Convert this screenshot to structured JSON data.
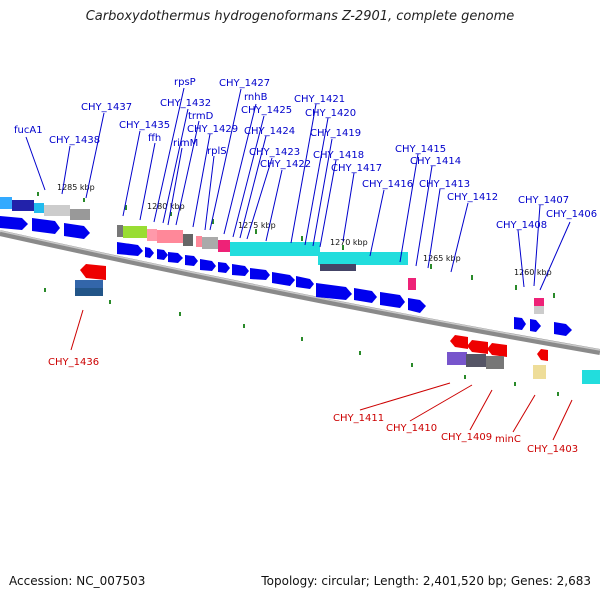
{
  "title": "Carboxydothermus hydrogenoformans Z-2901, complete genome",
  "footer": {
    "accession": "Accession: NC_007503",
    "summary": "Topology: circular; Length: 2,401,520 bp; Genes: 2,683"
  },
  "scale_labels": [
    "1285 kbp",
    "1280 kbp",
    "1275 kbp",
    "1270 kbp",
    "1265 kbp",
    "1260 kbp"
  ],
  "gene_labels_top": [
    "fucA1",
    "CHY_1438",
    "CHY_1437",
    "CHY_1435",
    "ffh",
    "rpsP",
    "CHY_1432",
    "trmD",
    "rimM",
    "CHY_1429",
    "rplS",
    "CHY_1427",
    "rnhB",
    "CHY_1425",
    "CHY_1424",
    "CHY_1423",
    "CHY_1422",
    "CHY_1421",
    "CHY_1420",
    "CHY_1419",
    "CHY_1418",
    "CHY_1417",
    "CHY_1416",
    "CHY_1415",
    "CHY_1414",
    "CHY_1413",
    "CHY_1412",
    "CHY_1407",
    "CHY_1408",
    "CHY_1406"
  ],
  "gene_labels_bottom": [
    "CHY_1436",
    "CHY_1411",
    "CHY_1410",
    "CHY_1409",
    "minC",
    "CHY_1403"
  ],
  "colors": {
    "forward_gene": "#0000ee",
    "reverse_gene": "#ee0000",
    "label_forward": "#0000cc",
    "label_reverse": "#cc0000",
    "backbone": "#888888",
    "tick": "#228822"
  }
}
